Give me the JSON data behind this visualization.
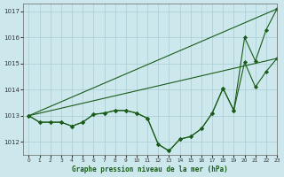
{
  "title": "Graphe pression niveau de la mer (hPa)",
  "bg_color": "#cce8ec",
  "grid_color": "#aaccd4",
  "line_color": "#1a5c1a",
  "marker_color": "#1a5c1a",
  "xlim": [
    -0.5,
    23
  ],
  "ylim": [
    1011.5,
    1017.3
  ],
  "yticks": [
    1012,
    1013,
    1014,
    1015,
    1016,
    1017
  ],
  "xticks": [
    0,
    1,
    2,
    3,
    4,
    5,
    6,
    7,
    8,
    9,
    10,
    11,
    12,
    13,
    14,
    15,
    16,
    17,
    18,
    19,
    20,
    21,
    22,
    23
  ],
  "series": [
    {
      "x": [
        0,
        1,
        2,
        3,
        4,
        5,
        6,
        7,
        8,
        9,
        10,
        11,
        12,
        13,
        14,
        15,
        16,
        17,
        18,
        19,
        20,
        21,
        22,
        23
      ],
      "y": [
        1013.0,
        1012.75,
        1012.75,
        1012.75,
        1012.6,
        1012.75,
        1013.05,
        1013.1,
        1013.2,
        1013.2,
        1013.1,
        1012.9,
        1011.9,
        1011.65,
        1012.1,
        1012.2,
        1012.5,
        1013.1,
        1014.05,
        1013.2,
        1016.0,
        1015.1,
        1016.3,
        1017.1
      ],
      "has_markers": true
    },
    {
      "x": [
        0,
        1,
        2,
        3,
        4,
        5,
        6,
        7,
        8,
        9,
        10,
        11,
        12,
        13,
        14,
        15,
        16,
        17,
        18,
        19,
        20,
        21,
        22,
        23
      ],
      "y": [
        1013.0,
        1012.75,
        1012.75,
        1012.75,
        1012.6,
        1012.75,
        1013.05,
        1013.1,
        1013.2,
        1013.2,
        1013.1,
        1012.9,
        1011.9,
        1011.65,
        1012.1,
        1012.2,
        1012.5,
        1013.1,
        1014.05,
        1013.2,
        1015.05,
        1014.1,
        1014.7,
        1015.2
      ],
      "has_markers": true
    },
    {
      "x": [
        0,
        23
      ],
      "y": [
        1013.0,
        1017.1
      ],
      "has_markers": false
    },
    {
      "x": [
        0,
        23
      ],
      "y": [
        1013.0,
        1015.2
      ],
      "has_markers": false
    }
  ]
}
